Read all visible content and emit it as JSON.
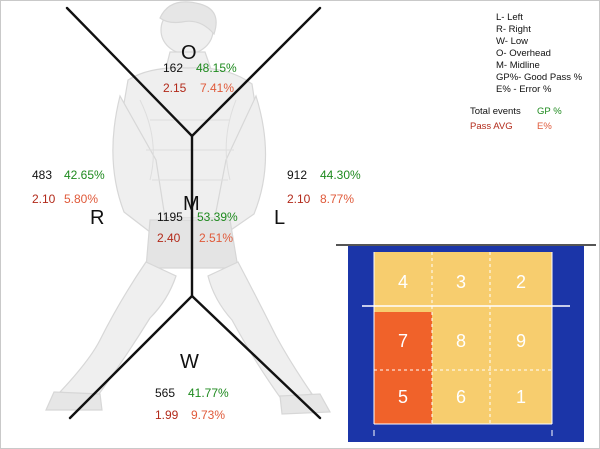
{
  "zones": {
    "overhead": {
      "label": "O",
      "count": "162",
      "good_pass_pct": "48.15%",
      "pass_avg": "2.15",
      "error_pct": "7.41%"
    },
    "right": {
      "label": "R",
      "count": "483",
      "good_pass_pct": "42.65%",
      "pass_avg": "2.10",
      "error_pct": "5.80%"
    },
    "midline": {
      "label": "M",
      "count": "1195",
      "good_pass_pct": "53.39%",
      "pass_avg": "2.40",
      "error_pct": "2.51%"
    },
    "left": {
      "label": "L",
      "count": "912",
      "good_pass_pct": "44.30%",
      "pass_avg": "2.10",
      "error_pct": "8.77%"
    },
    "low": {
      "label": "W",
      "count": "565",
      "good_pass_pct": "41.77%",
      "pass_avg": "1.99",
      "error_pct": "9.73%"
    }
  },
  "legend": {
    "items": [
      "L- Left",
      "R- Right",
      "W- Low",
      "O- Overhead",
      "M- Midline",
      "GP%- Good Pass %",
      "E% - Error %"
    ],
    "key": {
      "total_events": "Total events",
      "gp_pct": "GP %",
      "pass_avg": "Pass AVG",
      "e_pct": "E%"
    }
  },
  "court": {
    "cells": [
      {
        "number": "4",
        "highlight": false
      },
      {
        "number": "3",
        "highlight": false
      },
      {
        "number": "2",
        "highlight": false
      },
      {
        "number": "7",
        "highlight": true
      },
      {
        "number": "8",
        "highlight": false
      },
      {
        "number": "9",
        "highlight": false
      },
      {
        "number": "5",
        "highlight": true
      },
      {
        "number": "6",
        "highlight": false
      },
      {
        "number": "1",
        "highlight": false
      }
    ]
  },
  "colors": {
    "good_pass": "#1e8a1e",
    "pass_avg": "#b22a1a",
    "error": "#e05a3a",
    "court_blue": "#1b35a8",
    "court_yellow": "#f7cd6e",
    "court_highlight": "#f0622a"
  },
  "background": "faint sketch of volleyball player in passing stance"
}
